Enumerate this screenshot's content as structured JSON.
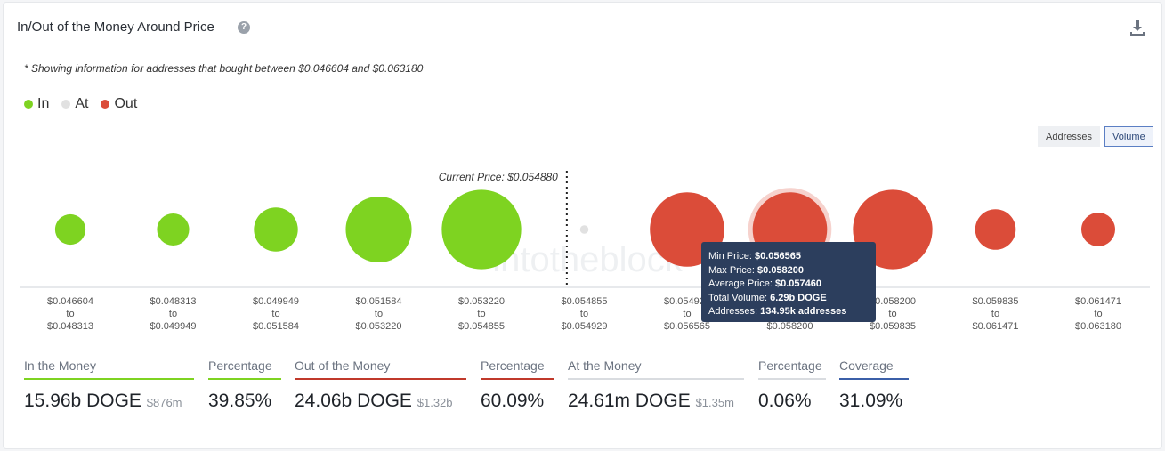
{
  "header": {
    "title": "In/Out of the Money Around Price"
  },
  "note": "* Showing information for addresses that bought between $0.046604 and $0.063180",
  "legend": [
    {
      "label": "In",
      "color": "#7ed321"
    },
    {
      "label": "At",
      "color": "#e1e1e1"
    },
    {
      "label": "Out",
      "color": "#db4c39"
    }
  ],
  "toggles": {
    "addresses": "Addresses",
    "volume": "Volume",
    "selected": "Volume"
  },
  "chart_data": {
    "type": "bubble",
    "current_price_label": "Current Price: $0.054880",
    "current_price": 0.05488,
    "watermark": "intotheblock",
    "bins": [
      {
        "from": "$0.046604",
        "to": "$0.048313",
        "status": "In"
      },
      {
        "from": "$0.048313",
        "to": "$0.049949",
        "status": "In"
      },
      {
        "from": "$0.049949",
        "to": "$0.051584",
        "status": "In"
      },
      {
        "from": "$0.051584",
        "to": "$0.053220",
        "status": "In"
      },
      {
        "from": "$0.053220",
        "to": "$0.054855",
        "status": "In"
      },
      {
        "from": "$0.054855",
        "to": "$0.054929",
        "status": "At"
      },
      {
        "from": "$0.054929",
        "to": "$0.056565",
        "status": "Out"
      },
      {
        "from": "$0.056565",
        "to": "$0.058200",
        "status": "Out",
        "highlighted": true
      },
      {
        "from": "$0.058200",
        "to": "$0.059835",
        "status": "Out"
      },
      {
        "from": "$0.059835",
        "to": "$0.061471",
        "status": "Out"
      },
      {
        "from": "$0.061471",
        "to": "$0.063180",
        "status": "Out"
      }
    ],
    "relative_volume": [
      0.18,
      0.19,
      0.26,
      0.39,
      0.47,
      0.05,
      0.44,
      0.44,
      0.47,
      0.24,
      0.2
    ],
    "to_word": "to"
  },
  "tooltip": {
    "min_price_label": "Min Price:",
    "min_price": "$0.056565",
    "max_price_label": "Max Price:",
    "max_price": "$0.058200",
    "avg_price_label": "Average Price:",
    "avg_price": "$0.057460",
    "total_volume_label": "Total Volume:",
    "total_volume": "6.29b DOGE",
    "addresses_label": "Addresses:",
    "addresses": "134.95k addresses"
  },
  "stats": [
    {
      "label": "In the Money",
      "value": "15.96b DOGE",
      "sub": "$876m",
      "color": "#7ed321"
    },
    {
      "label": "Percentage",
      "value": "39.85%",
      "sub": "",
      "color": "#7ed321"
    },
    {
      "label": "Out of the Money",
      "value": "24.06b DOGE",
      "sub": "$1.32b",
      "color": "#c0392b"
    },
    {
      "label": "Percentage",
      "value": "60.09%",
      "sub": "",
      "color": "#c0392b"
    },
    {
      "label": "At the Money",
      "value": "24.61m DOGE",
      "sub": "$1.35m",
      "color": "#d9dce0"
    },
    {
      "label": "Percentage",
      "value": "0.06%",
      "sub": "",
      "color": "#d9dce0"
    },
    {
      "label": "Coverage",
      "value": "31.09%",
      "sub": "",
      "color": "#3b5fa8"
    }
  ]
}
